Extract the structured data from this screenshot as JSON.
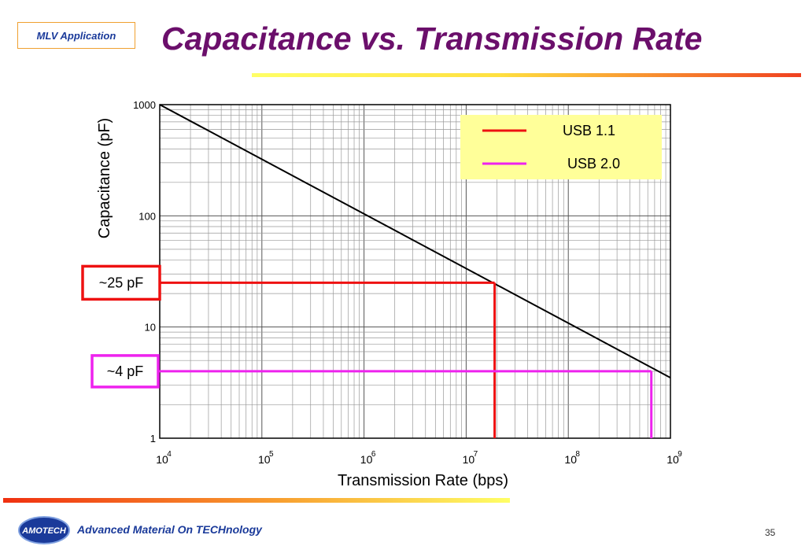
{
  "slide": {
    "tag": "MLV Application",
    "title": "Capacitance vs. Transmission Rate",
    "footer": "Advanced Material On TECHnology",
    "logo_text": "AMOTECH",
    "page_number": "35"
  },
  "chart_data": {
    "type": "line",
    "title": "Capacitance vs. Transmission Rate",
    "xlabel": "Transmission Rate (bps)",
    "ylabel": "Capacitance (pF)",
    "xscale": "log",
    "yscale": "log",
    "xlim": [
      10000,
      1000000000
    ],
    "ylim": [
      1,
      1000
    ],
    "grid": true,
    "x_ticks": [
      {
        "base": "10",
        "exp": "4",
        "value": 10000
      },
      {
        "base": "10",
        "exp": "5",
        "value": 100000
      },
      {
        "base": "10",
        "exp": "6",
        "value": 1000000
      },
      {
        "base": "10",
        "exp": "7",
        "value": 10000000
      },
      {
        "base": "10",
        "exp": "8",
        "value": 100000000
      },
      {
        "base": "10",
        "exp": "9",
        "value": 1000000000
      }
    ],
    "y_ticks": [
      {
        "label": "1",
        "value": 1
      },
      {
        "label": "10",
        "value": 10
      },
      {
        "label": "100",
        "value": 100
      },
      {
        "label": "1000",
        "value": 1000
      }
    ],
    "curve": {
      "color": "#000000",
      "x": [
        10000,
        1000000000
      ],
      "y": [
        1000,
        3.5
      ]
    },
    "series": [
      {
        "name": "USB 1.1",
        "color": "#ee1111",
        "x_rate": 19000000,
        "y_cap": 25,
        "annotation": "~25 pF"
      },
      {
        "name": "USB 2.0",
        "color": "#ee22ee",
        "x_rate": 650000000,
        "y_cap": 4,
        "annotation": "~4 pF"
      }
    ],
    "legend": {
      "position": "top-right",
      "background": "#ffff99"
    }
  }
}
